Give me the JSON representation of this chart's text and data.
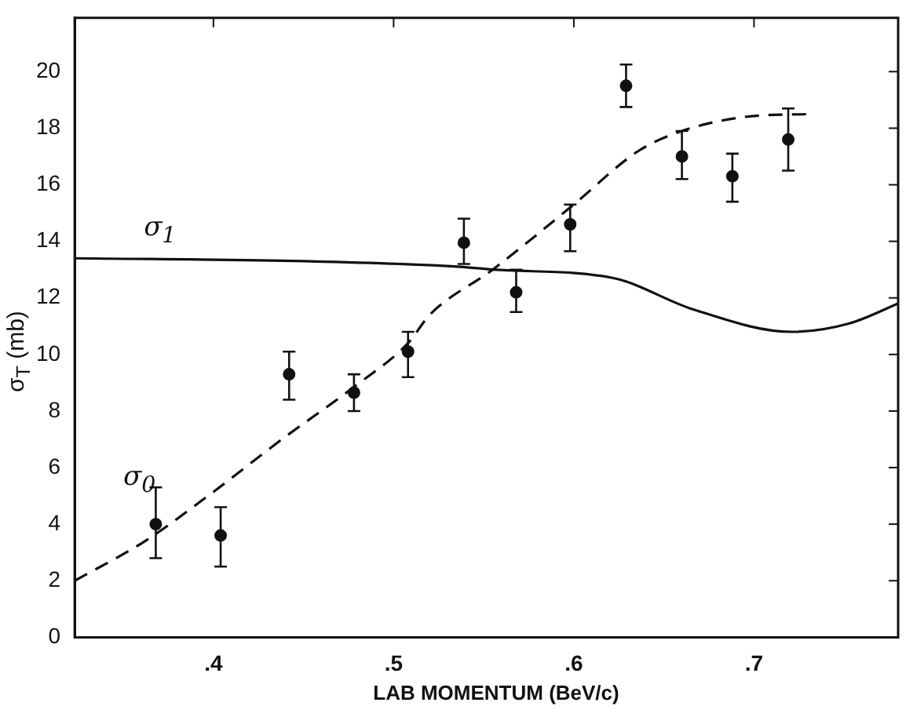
{
  "chart_data": {
    "type": "line",
    "xlabel": "LAB  MOMENTUM (BeV/c)",
    "ylabel": "σ$_{T}$ (mb)",
    "xlim": [
      0.323,
      0.78
    ],
    "ylim": [
      0,
      21.9
    ],
    "xticks": [
      {
        "value": 0.4,
        "label": ".4"
      },
      {
        "value": 0.5,
        "label": ".5"
      },
      {
        "value": 0.6,
        "label": ".6"
      },
      {
        "value": 0.7,
        "label": ".7"
      }
    ],
    "yticks": [
      0,
      2,
      4,
      6,
      8,
      10,
      12,
      14,
      16,
      18,
      20
    ],
    "grid": false,
    "legend": false,
    "series": [
      {
        "type": "scatter",
        "color": "#111111",
        "marker": "circle",
        "x": [
          0.368,
          0.404,
          0.442,
          0.478,
          0.508,
          0.539,
          0.568,
          0.598,
          0.629,
          0.66,
          0.688,
          0.719
        ],
        "values": [
          4.0,
          3.6,
          9.3,
          8.65,
          10.1,
          13.95,
          12.2,
          14.6,
          19.5,
          17.0,
          16.3,
          17.6
        ],
        "errors": [
          [
            2.8,
            5.3
          ],
          [
            2.5,
            4.6
          ],
          [
            8.4,
            10.1
          ],
          [
            8.0,
            9.3
          ],
          [
            9.2,
            10.8
          ],
          [
            13.2,
            14.8
          ],
          [
            11.5,
            13.0
          ],
          [
            13.65,
            15.3
          ],
          [
            18.75,
            20.25
          ],
          [
            16.2,
            17.9
          ],
          [
            15.4,
            17.1
          ],
          [
            16.5,
            18.7
          ]
        ]
      },
      {
        "type": "line",
        "name": "σ$_{1}$",
        "color": "#111111",
        "line_style": "solid",
        "x": [
          0.323,
          0.45,
          0.537,
          0.555,
          0.622,
          0.666,
          0.721,
          0.753,
          0.78
        ],
        "values": [
          13.4,
          13.3,
          13.1,
          13.0,
          12.7,
          11.6,
          10.8,
          11.1,
          11.8
        ]
      },
      {
        "type": "line",
        "name": "σ$_{0}$",
        "color": "#111111",
        "line_style": "dashed",
        "x": [
          0.323,
          0.362,
          0.397,
          0.438,
          0.479,
          0.508,
          0.52,
          0.555,
          0.599,
          0.636,
          0.66,
          0.695,
          0.73
        ],
        "values": [
          2.0,
          3.4,
          5.0,
          7.0,
          8.9,
          10.4,
          11.4,
          13.0,
          15.25,
          17.2,
          17.9,
          18.4,
          18.5
        ]
      }
    ]
  }
}
